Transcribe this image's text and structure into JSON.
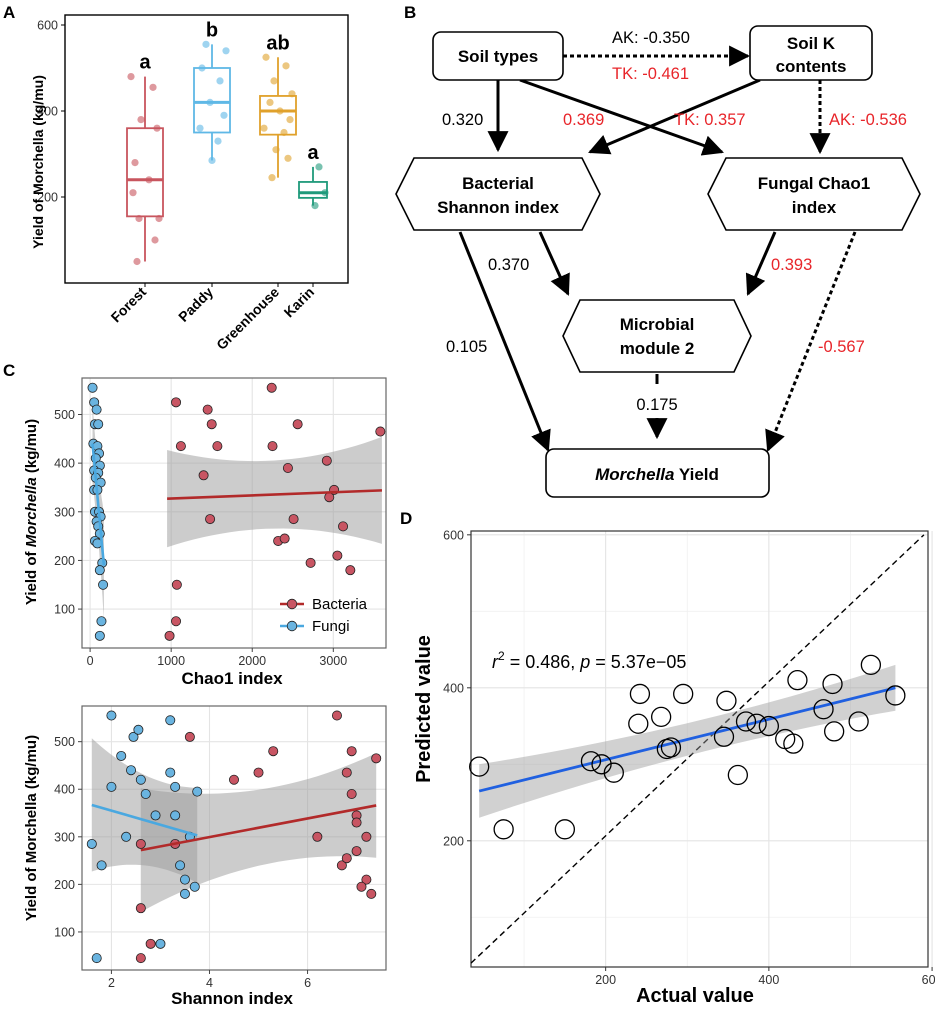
{
  "panels": {
    "a": "A",
    "b": "B",
    "c": "C",
    "d": "D"
  },
  "colors": {
    "forest": "#c8555e",
    "paddy": "#5fb8e6",
    "greenhouse": "#e0a12b",
    "karin": "#1f9a7b",
    "bacteria": "#b22a2a",
    "bacteria_point": "#c85563",
    "fungi": "#4aa8e0",
    "fungi_point": "#6ab4e0",
    "positive": "#000000",
    "negative": "#e8252a",
    "fit_d": "#2060e0"
  },
  "chart_data": [
    {
      "id": "A",
      "type": "box",
      "title": "",
      "xlabel": "",
      "ylabel": "Yield of Morchella (kg/mu)",
      "ylim": [
        0,
        600
      ],
      "yticks": [
        200,
        400,
        600
      ],
      "categories": [
        "Forest",
        "Paddy",
        "Greenhouse",
        "Karin"
      ],
      "letters": [
        "a",
        "b",
        "ab",
        "a"
      ],
      "boxes": [
        {
          "name": "Forest",
          "min": 50,
          "q1": 155,
          "median": 240,
          "q3": 360,
          "max": 480,
          "points": [
            480,
            455,
            380,
            360,
            280,
            240,
            210,
            150,
            150,
            100,
            50
          ]
        },
        {
          "name": "Paddy",
          "min": 285,
          "q1": 350,
          "median": 420,
          "q3": 500,
          "max": 555,
          "points": [
            555,
            540,
            500,
            470,
            420,
            390,
            360,
            330,
            285
          ]
        },
        {
          "name": "Greenhouse",
          "min": 245,
          "q1": 345,
          "median": 400,
          "q3": 435,
          "max": 525,
          "points": [
            525,
            505,
            470,
            440,
            420,
            400,
            380,
            360,
            350,
            310,
            290,
            245
          ]
        },
        {
          "name": "Karin",
          "min": 180,
          "q1": 198,
          "median": 210,
          "q3": 235,
          "max": 270,
          "points": [
            270,
            210,
            180
          ]
        }
      ]
    },
    {
      "id": "B",
      "type": "diagram",
      "nodes": {
        "soil": "Soil types",
        "soilk": [
          "Soil K",
          "contents"
        ],
        "bact": [
          "Bacterial",
          "Shannon index"
        ],
        "fung": [
          "Fungal Chao1",
          "index"
        ],
        "micro": [
          "Microbial",
          "module 2"
        ],
        "yield_italic": "Morchella",
        "yield_rest": " Yield"
      },
      "edges": [
        {
          "label": "AK: -0.350",
          "sign": "positive"
        },
        {
          "label": "TK: -0.461",
          "sign": "negative"
        },
        {
          "label": "0.320",
          "sign": "positive"
        },
        {
          "label": "0.369",
          "sign": "negative"
        },
        {
          "label": "TK: 0.357",
          "sign": "negative"
        },
        {
          "label": "AK: -0.536",
          "sign": "negative"
        },
        {
          "label": "0.370",
          "sign": "positive"
        },
        {
          "label": "0.393",
          "sign": "negative"
        },
        {
          "label": "0.105",
          "sign": "positive"
        },
        {
          "label": "-0.567",
          "sign": "negative"
        },
        {
          "label": "0.175",
          "sign": "positive"
        }
      ]
    },
    {
      "id": "C1",
      "type": "scatter",
      "xlabel": "Chao1 index",
      "ylabel_pre": "Yield of ",
      "ylabel_italic": "Morchella",
      "ylabel_post": " (kg/mu)",
      "xlim": [
        -100,
        3650
      ],
      "ylim": [
        20,
        575
      ],
      "xticks": [
        0,
        1000,
        2000,
        3000
      ],
      "yticks": [
        100,
        200,
        300,
        400,
        500
      ],
      "legend": [
        "Bacteria",
        "Fungi"
      ],
      "series": [
        {
          "name": "Bacteria",
          "points": [
            [
              980,
              45
            ],
            [
              1060,
              75
            ],
            [
              1070,
              150
            ],
            [
              1060,
              525
            ],
            [
              1120,
              435
            ],
            [
              1400,
              375
            ],
            [
              1450,
              510
            ],
            [
              1480,
              285
            ],
            [
              1500,
              480
            ],
            [
              1570,
              435
            ],
            [
              2240,
              555
            ],
            [
              2250,
              435
            ],
            [
              2320,
              240
            ],
            [
              2400,
              245
            ],
            [
              2440,
              390
            ],
            [
              2510,
              285
            ],
            [
              2560,
              480
            ],
            [
              2720,
              195
            ],
            [
              2920,
              405
            ],
            [
              2950,
              330
            ],
            [
              3010,
              345
            ],
            [
              3050,
              210
            ],
            [
              3120,
              270
            ],
            [
              3210,
              180
            ],
            [
              3580,
              465
            ]
          ],
          "fit": {
            "x": [
              950,
              3600
            ],
            "y": [
              327,
              344
            ]
          }
        },
        {
          "name": "Fungi",
          "points": [
            [
              30,
              555
            ],
            [
              50,
              525
            ],
            [
              80,
              510
            ],
            [
              60,
              480
            ],
            [
              100,
              480
            ],
            [
              40,
              440
            ],
            [
              90,
              435
            ],
            [
              110,
              420
            ],
            [
              70,
              410
            ],
            [
              120,
              395
            ],
            [
              50,
              385
            ],
            [
              100,
              380
            ],
            [
              70,
              370
            ],
            [
              130,
              360
            ],
            [
              50,
              345
            ],
            [
              90,
              345
            ],
            [
              60,
              300
            ],
            [
              110,
              300
            ],
            [
              130,
              290
            ],
            [
              80,
              280
            ],
            [
              100,
              270
            ],
            [
              120,
              255
            ],
            [
              60,
              240
            ],
            [
              90,
              235
            ],
            [
              150,
              195
            ],
            [
              120,
              180
            ],
            [
              160,
              150
            ],
            [
              140,
              75
            ],
            [
              120,
              45
            ]
          ],
          "fit": {
            "x": [
              30,
              170
            ],
            "y": [
              440,
              190
            ]
          }
        }
      ]
    },
    {
      "id": "C2",
      "type": "scatter",
      "xlabel": "Shannon index",
      "ylabel": "Yield of Morchella (kg/mu)",
      "xlim": [
        1.4,
        7.6
      ],
      "ylim": [
        20,
        575
      ],
      "xticks": [
        2,
        4,
        6
      ],
      "yticks": [
        100,
        200,
        300,
        400,
        500
      ],
      "series": [
        {
          "name": "Bacteria",
          "points": [
            [
              2.6,
              45
            ],
            [
              2.8,
              75
            ],
            [
              2.6,
              150
            ],
            [
              2.6,
              285
            ],
            [
              3.3,
              285
            ],
            [
              3.6,
              510
            ],
            [
              4.5,
              420
            ],
            [
              5.0,
              435
            ],
            [
              5.3,
              480
            ],
            [
              6.6,
              555
            ],
            [
              6.2,
              300
            ],
            [
              6.7,
              240
            ],
            [
              6.8,
              435
            ],
            [
              6.9,
              390
            ],
            [
              6.9,
              480
            ],
            [
              7.0,
              345
            ],
            [
              7.0,
              330
            ],
            [
              7.0,
              270
            ],
            [
              7.2,
              210
            ],
            [
              7.3,
              180
            ],
            [
              7.4,
              465
            ],
            [
              7.2,
              300
            ],
            [
              6.8,
              255
            ],
            [
              7.1,
              195
            ]
          ],
          "fit": {
            "x": [
              2.6,
              7.4
            ],
            "y": [
              272,
              366
            ]
          }
        },
        {
          "name": "Fungi",
          "points": [
            [
              1.7,
              45
            ],
            [
              1.6,
              285
            ],
            [
              1.8,
              240
            ],
            [
              2.0,
              405
            ],
            [
              2.0,
              555
            ],
            [
              2.2,
              470
            ],
            [
              2.3,
              300
            ],
            [
              2.4,
              440
            ],
            [
              2.45,
              510
            ],
            [
              2.55,
              525
            ],
            [
              2.6,
              420
            ],
            [
              2.7,
              390
            ],
            [
              2.9,
              345
            ],
            [
              3.0,
              75
            ],
            [
              3.2,
              545
            ],
            [
              3.2,
              435
            ],
            [
              3.3,
              405
            ],
            [
              3.3,
              345
            ],
            [
              3.4,
              240
            ],
            [
              3.5,
              210
            ],
            [
              3.5,
              180
            ],
            [
              3.6,
              300
            ],
            [
              3.7,
              195
            ],
            [
              3.75,
              395
            ]
          ],
          "fit": {
            "x": [
              1.6,
              3.75
            ],
            "y": [
              367,
              303
            ]
          }
        }
      ]
    },
    {
      "id": "D",
      "type": "scatter",
      "xlabel": "Actual value",
      "ylabel": "Predicted value",
      "xlim": [
        35,
        595
      ],
      "ylim": [
        35,
        605
      ],
      "xticks": [
        200,
        400,
        600
      ],
      "yticks": [
        200,
        400,
        600
      ],
      "annotation": {
        "r": "r",
        "sup": "2",
        "mid": " = 0.486, ",
        "p": "p",
        "rest": " = 5.37e−05"
      },
      "points": [
        [
          45,
          297
        ],
        [
          75,
          215
        ],
        [
          150,
          215
        ],
        [
          182,
          304
        ],
        [
          195,
          300
        ],
        [
          210,
          289
        ],
        [
          240,
          353
        ],
        [
          242,
          392
        ],
        [
          268,
          362
        ],
        [
          275,
          320
        ],
        [
          280,
          322
        ],
        [
          295,
          392
        ],
        [
          345,
          336
        ],
        [
          348,
          383
        ],
        [
          362,
          286
        ],
        [
          372,
          356
        ],
        [
          385,
          353
        ],
        [
          400,
          350
        ],
        [
          420,
          333
        ],
        [
          430,
          327
        ],
        [
          435,
          410
        ],
        [
          467,
          372
        ],
        [
          478,
          405
        ],
        [
          480,
          343
        ],
        [
          510,
          356
        ],
        [
          525,
          430
        ],
        [
          555,
          390
        ]
      ],
      "fit": {
        "x": [
          45,
          555
        ],
        "y": [
          265,
          400
        ]
      }
    }
  ]
}
